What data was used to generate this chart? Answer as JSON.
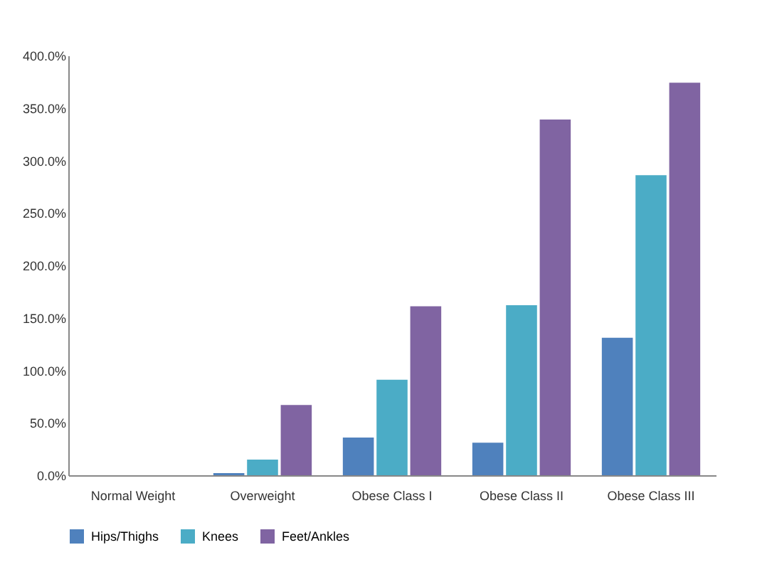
{
  "chart_data": {
    "type": "bar",
    "categories": [
      "Normal Weight",
      "Overweight",
      "Obese Class I",
      "Obese Class II",
      "Obese Class III"
    ],
    "series": [
      {
        "name": "Hips/Thighs",
        "color": "#4f81bd",
        "values": [
          0,
          2,
          36,
          31,
          131
        ]
      },
      {
        "name": "Knees",
        "color": "#4bacc6",
        "values": [
          0,
          15,
          91,
          162,
          286
        ]
      },
      {
        "name": "Feet/Ankles",
        "color": "#8064a2",
        "values": [
          0,
          67,
          161,
          339,
          374
        ]
      }
    ],
    "ylim": [
      0,
      400
    ],
    "yticks": [
      {
        "value": 0,
        "label": "0.0%"
      },
      {
        "value": 50,
        "label": "50.0%"
      },
      {
        "value": 100,
        "label": "100.0%"
      },
      {
        "value": 150,
        "label": "150.0%"
      },
      {
        "value": 200,
        "label": "200.0%"
      },
      {
        "value": 250,
        "label": "250.0%"
      },
      {
        "value": 300,
        "label": "300.0%"
      },
      {
        "value": 350,
        "label": "350.0%"
      },
      {
        "value": 400,
        "label": "400.0%"
      }
    ],
    "grid": false,
    "legend": "bottom"
  }
}
